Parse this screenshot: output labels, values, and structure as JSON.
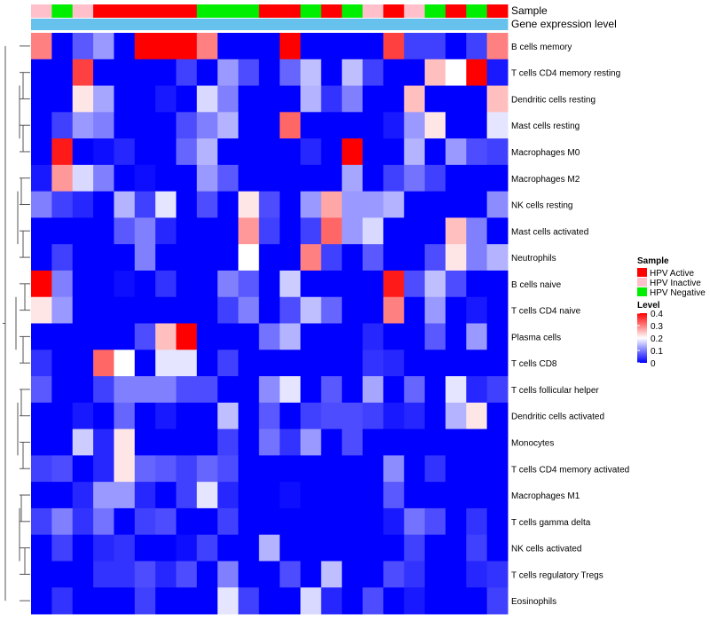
{
  "chart_data": {
    "type": "heatmap",
    "annotation_labels": [
      "Sample",
      "Gene expression level"
    ],
    "rows": [
      "B cells memory",
      "T cells CD4 memory resting",
      "Dendritic cells resting",
      "Mast cells resting",
      "Macrophages M0",
      "Macrophages M2",
      "NK cells resting",
      "Mast cells activated",
      "Neutrophils",
      "B cells naive",
      "T cells CD4 naive",
      "Plasma cells",
      "T cells CD8",
      "T cells follicular helper",
      "Dendritic cells activated",
      "Monocytes",
      "T cells CD4 memory activated",
      "Macrophages M1",
      "T cells gamma delta",
      "NK cells activated",
      "T cells regulatory  Tregs",
      "Eosinophils"
    ],
    "sample_groups": [
      "Inactive",
      "Negative",
      "Inactive",
      "Active",
      "Active",
      "Active",
      "Active",
      "Active",
      "Negative",
      "Negative",
      "Negative",
      "Active",
      "Active",
      "Negative",
      "Active",
      "Negative",
      "Inactive",
      "Active",
      "Inactive",
      "Negative",
      "Active",
      "Negative",
      "Active"
    ],
    "values": [
      [
        0.3,
        0.0,
        0.07,
        0.12,
        0.0,
        0.4,
        0.4,
        0.4,
        0.3,
        0.0,
        0.0,
        0.0,
        0.4,
        0.0,
        0.0,
        0.0,
        0.0,
        0.35,
        0.05,
        0.05,
        0.0,
        0.05,
        0.3
      ],
      [
        0.0,
        0.0,
        0.35,
        0.0,
        0.0,
        0.0,
        0.0,
        0.05,
        0.0,
        0.12,
        0.06,
        0.0,
        0.08,
        0.15,
        0.0,
        0.15,
        0.05,
        0.0,
        0.0,
        0.25,
        0.2,
        0.4,
        0.02
      ],
      [
        0.0,
        0.0,
        0.22,
        0.13,
        0.0,
        0.0,
        0.02,
        0.0,
        0.17,
        0.1,
        0.0,
        0.0,
        0.0,
        0.14,
        0.04,
        0.1,
        0.0,
        0.0,
        0.25,
        0.0,
        0.0,
        0.0,
        0.25
      ],
      [
        0.0,
        0.05,
        0.12,
        0.1,
        0.0,
        0.0,
        0.0,
        0.06,
        0.1,
        0.14,
        0.0,
        0.0,
        0.32,
        0.0,
        0.0,
        0.0,
        0.0,
        0.02,
        0.12,
        0.22,
        0.0,
        0.0,
        0.18
      ],
      [
        0.0,
        0.38,
        0.0,
        0.01,
        0.03,
        0.0,
        0.0,
        0.08,
        0.14,
        0.0,
        0.0,
        0.0,
        0.0,
        0.03,
        0.0,
        0.4,
        0.0,
        0.0,
        0.14,
        0.0,
        0.12,
        0.06,
        0.05
      ],
      [
        0.02,
        0.28,
        0.17,
        0.1,
        0.0,
        0.01,
        0.0,
        0.0,
        0.12,
        0.07,
        0.0,
        0.0,
        0.0,
        0.0,
        0.0,
        0.13,
        0.0,
        0.05,
        0.09,
        0.05,
        0.0,
        0.0,
        0.0
      ],
      [
        0.1,
        0.05,
        0.03,
        0.0,
        0.14,
        0.05,
        0.18,
        0.0,
        0.06,
        0.0,
        0.22,
        0.06,
        0.0,
        0.12,
        0.27,
        0.12,
        0.12,
        0.14,
        0.0,
        0.0,
        0.0,
        0.0,
        0.11
      ],
      [
        0.0,
        0.0,
        0.0,
        0.0,
        0.07,
        0.1,
        0.03,
        0.0,
        0.0,
        0.0,
        0.28,
        0.05,
        0.0,
        0.05,
        0.32,
        0.12,
        0.17,
        0.0,
        0.0,
        0.0,
        0.25,
        0.1,
        0.0
      ],
      [
        0.0,
        0.05,
        0.0,
        0.0,
        0.0,
        0.1,
        0.0,
        0.0,
        0.0,
        0.0,
        0.2,
        0.0,
        0.0,
        0.3,
        0.05,
        0.0,
        0.07,
        0.0,
        0.0,
        0.06,
        0.22,
        0.1,
        0.14
      ],
      [
        0.4,
        0.1,
        0.0,
        0.0,
        0.01,
        0.0,
        0.04,
        0.0,
        0.0,
        0.1,
        0.07,
        0.0,
        0.16,
        0.0,
        0.0,
        0.0,
        0.0,
        0.38,
        0.06,
        0.15,
        0.06,
        0.0,
        0.0
      ],
      [
        0.22,
        0.12,
        0.0,
        0.0,
        0.0,
        0.0,
        0.0,
        0.0,
        0.0,
        0.05,
        0.1,
        0.0,
        0.06,
        0.15,
        0.08,
        0.0,
        0.0,
        0.3,
        0.0,
        0.12,
        0.0,
        0.02,
        0.0
      ],
      [
        0.0,
        0.0,
        0.0,
        0.0,
        0.0,
        0.06,
        0.25,
        0.4,
        0.0,
        0.0,
        0.0,
        0.09,
        0.14,
        0.0,
        0.0,
        0.0,
        0.03,
        0.0,
        0.0,
        0.07,
        0.0,
        0.12,
        0.0
      ],
      [
        0.04,
        0.0,
        0.0,
        0.32,
        0.2,
        0.0,
        0.18,
        0.18,
        0.0,
        0.05,
        0.0,
        0.0,
        0.0,
        0.0,
        0.0,
        0.0,
        0.04,
        0.03,
        0.0,
        0.0,
        0.0,
        0.0,
        0.0
      ],
      [
        0.07,
        0.0,
        0.0,
        0.05,
        0.1,
        0.1,
        0.1,
        0.06,
        0.06,
        0.0,
        0.0,
        0.11,
        0.18,
        0.0,
        0.07,
        0.0,
        0.13,
        0.0,
        0.08,
        0.0,
        0.18,
        0.03,
        0.05
      ],
      [
        0.0,
        0.0,
        0.02,
        0.0,
        0.08,
        0.0,
        0.02,
        0.0,
        0.0,
        0.15,
        0.0,
        0.07,
        0.0,
        0.05,
        0.06,
        0.06,
        0.05,
        0.02,
        0.03,
        0.0,
        0.14,
        0.22,
        0.0
      ],
      [
        0.0,
        0.0,
        0.16,
        0.03,
        0.22,
        0.0,
        0.0,
        0.0,
        0.0,
        0.05,
        0.0,
        0.09,
        0.04,
        0.12,
        0.0,
        0.06,
        0.0,
        0.0,
        0.0,
        0.0,
        0.0,
        0.0,
        0.0
      ],
      [
        0.05,
        0.06,
        0.0,
        0.03,
        0.22,
        0.08,
        0.07,
        0.05,
        0.08,
        0.06,
        0.0,
        0.0,
        0.0,
        0.0,
        0.0,
        0.0,
        0.0,
        0.11,
        0.0,
        0.04,
        0.0,
        0.0,
        0.0
      ],
      [
        0.0,
        0.0,
        0.03,
        0.12,
        0.12,
        0.03,
        0.0,
        0.05,
        0.18,
        0.03,
        0.0,
        0.0,
        0.01,
        0.0,
        0.0,
        0.0,
        0.0,
        0.07,
        0.0,
        0.0,
        0.0,
        0.0,
        0.0
      ],
      [
        0.05,
        0.1,
        0.04,
        0.09,
        0.0,
        0.05,
        0.06,
        0.0,
        0.0,
        0.05,
        0.0,
        0.0,
        0.0,
        0.0,
        0.0,
        0.0,
        0.0,
        0.02,
        0.09,
        0.06,
        0.0,
        0.04,
        0.0
      ],
      [
        0.0,
        0.05,
        0.0,
        0.03,
        0.04,
        0.0,
        0.0,
        0.01,
        0.05,
        0.0,
        0.0,
        0.14,
        0.0,
        0.0,
        0.0,
        0.0,
        0.0,
        0.0,
        0.05,
        0.0,
        0.0,
        0.05,
        0.0
      ],
      [
        0.0,
        0.0,
        0.0,
        0.04,
        0.04,
        0.06,
        0.03,
        0.06,
        0.0,
        0.1,
        0.0,
        0.0,
        0.06,
        0.0,
        0.15,
        0.0,
        0.0,
        0.06,
        0.04,
        0.0,
        0.0,
        0.03,
        0.04
      ],
      [
        0.0,
        0.04,
        0.0,
        0.0,
        0.0,
        0.05,
        0.0,
        0.0,
        0.0,
        0.18,
        0.05,
        0.0,
        0.0,
        0.17,
        0.03,
        0.0,
        0.06,
        0.0,
        0.02,
        0.0,
        0.0,
        0.0,
        0.05
      ]
    ],
    "legend": {
      "sample_title": "Sample",
      "sample_entries": [
        {
          "label": "HPV Active",
          "color": "#ff0000"
        },
        {
          "label": "HPV Inactive",
          "color": "#ffc0cb"
        },
        {
          "label": "HPV Negative",
          "color": "#00ee00"
        }
      ],
      "level_title": "Level",
      "level_ticks": [
        "0.4",
        "0.3",
        "0.2",
        "0.1",
        "0"
      ],
      "level_range": [
        0,
        0.4
      ]
    },
    "colors": {
      "low": "#0000ff",
      "mid": "#ffffff",
      "high": "#ff0000",
      "gene_expression_bar": "#66c2ec"
    }
  }
}
